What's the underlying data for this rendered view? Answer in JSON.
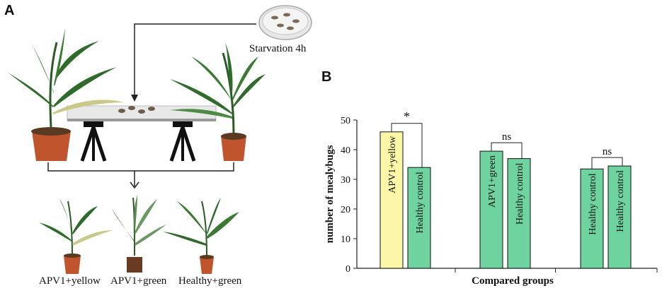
{
  "panel_a": {
    "letter": "A",
    "dish_label": "Starvation 4h",
    "bottom_labels": [
      "APV1+yellow",
      "APV1+green",
      "Healthy+green"
    ]
  },
  "panel_b": {
    "letter": "B"
  },
  "colors": {
    "yellow_bar": "#fbf7a6",
    "green_bar": "#6fd3a0",
    "pot": "#c0542c",
    "leaf": "#2f6b2a",
    "yellow_leaf": "#c9c98a"
  },
  "chart_data": {
    "type": "bar",
    "xlabel": "Compared groups",
    "ylabel": "number of mealybugs",
    "ylim": [
      0,
      50
    ],
    "yticks": [
      0,
      10,
      20,
      30,
      40,
      50
    ],
    "groups": [
      {
        "bars": [
          {
            "label": "APV1+yellow",
            "value": 46,
            "color": "yellow"
          },
          {
            "label": "Healthy control",
            "value": 34,
            "color": "green"
          }
        ],
        "significance": "*"
      },
      {
        "bars": [
          {
            "label": "APV1+green",
            "value": 39.5,
            "color": "green"
          },
          {
            "label": "Healthy control",
            "value": 37,
            "color": "green"
          }
        ],
        "significance": "ns"
      },
      {
        "bars": [
          {
            "label": "Healthy control",
            "value": 33.5,
            "color": "green"
          },
          {
            "label": "Healthy control",
            "value": 34.5,
            "color": "green"
          }
        ],
        "significance": "ns"
      }
    ]
  }
}
